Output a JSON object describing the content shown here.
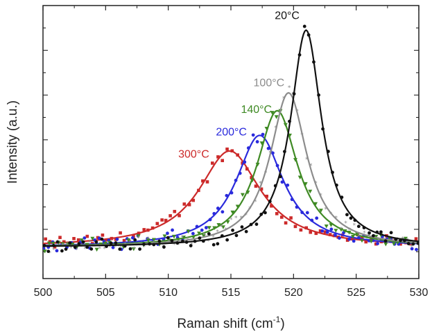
{
  "chart_data": {
    "type": "line",
    "title": "",
    "xlabel": "Raman shift (cm",
    "xlabel_sup": "-1",
    "xlabel_close": ")",
    "ylabel": "Intensity (a.u.)",
    "xlim": [
      500,
      530
    ],
    "ylim": [
      -0.12,
      1.1
    ],
    "xticks": [
      "500",
      "505",
      "510",
      "515",
      "520",
      "525",
      "530"
    ],
    "xtick_values": [
      500,
      505,
      510,
      515,
      520,
      525,
      530
    ],
    "grid": false,
    "legend": "inline labels near peaks",
    "series": [
      {
        "name": "20°C",
        "color": "#111111",
        "marker": "circle",
        "peak": 521.0,
        "fwhm": 3.0,
        "amp": 0.97,
        "base": 0.02,
        "label_x": 518.5,
        "label_y": 1.04
      },
      {
        "name": "100°C",
        "color": "#8c8c8c",
        "marker": "star",
        "peak": 519.6,
        "fwhm": 3.6,
        "amp": 0.69,
        "base": 0.02,
        "label_x": 516.8,
        "label_y": 0.74
      },
      {
        "name": "140°C",
        "color": "#3f8a24",
        "marker": "triangle",
        "peak": 518.7,
        "fwhm": 4.0,
        "amp": 0.61,
        "base": 0.02,
        "label_x": 515.8,
        "label_y": 0.62
      },
      {
        "name": "200°C",
        "color": "#2a2adc",
        "marker": "circle",
        "peak": 517.3,
        "fwhm": 4.6,
        "amp": 0.5,
        "base": 0.02,
        "label_x": 513.8,
        "label_y": 0.52
      },
      {
        "name": "300°C",
        "color": "#cc2a2a",
        "marker": "square",
        "peak": 514.9,
        "fwhm": 6.0,
        "amp": 0.43,
        "base": 0.02,
        "label_x": 510.8,
        "label_y": 0.42
      }
    ]
  }
}
